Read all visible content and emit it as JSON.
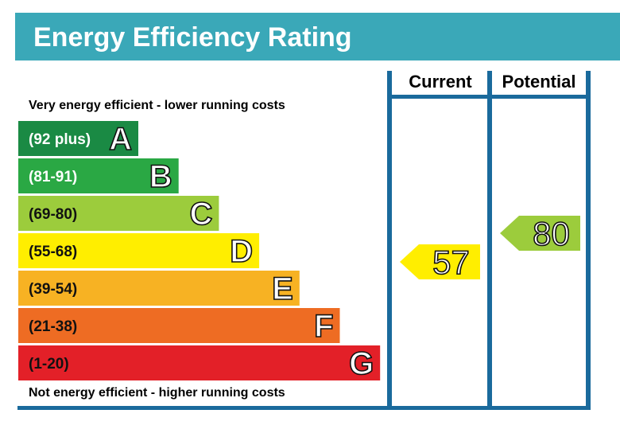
{
  "title": "Energy Efficiency Rating",
  "colors": {
    "header_bg": "#3aa8b8",
    "frame": "#1a6a9c",
    "text": "#111111",
    "label_text": "#ffffff"
  },
  "chart_data": {
    "type": "bar",
    "column_headers": [
      "Current",
      "Potential"
    ],
    "top_note": "Very energy efficient - lower running costs",
    "bottom_note": "Not energy efficient - higher running costs",
    "bands": [
      {
        "letter": "A",
        "range": "(92 plus)",
        "color": "#1a8a44",
        "range_text_color": "#ffffff",
        "min": 92,
        "max": 100
      },
      {
        "letter": "B",
        "range": "(81-91)",
        "color": "#2aa844",
        "range_text_color": "#ffffff",
        "min": 81,
        "max": 91
      },
      {
        "letter": "C",
        "range": "(69-80)",
        "color": "#9ccc3c",
        "range_text_color": "#111111",
        "min": 69,
        "max": 80
      },
      {
        "letter": "D",
        "range": "(55-68)",
        "color": "#ffee00",
        "range_text_color": "#111111",
        "min": 55,
        "max": 68
      },
      {
        "letter": "E",
        "range": "(39-54)",
        "color": "#f7b223",
        "range_text_color": "#111111",
        "min": 39,
        "max": 54
      },
      {
        "letter": "F",
        "range": "(21-38)",
        "color": "#ee6c23",
        "range_text_color": "#111111",
        "min": 21,
        "max": 38
      },
      {
        "letter": "G",
        "range": "(1-20)",
        "color": "#e32028",
        "range_text_color": "#111111",
        "min": 1,
        "max": 20
      }
    ],
    "current": {
      "value": 57,
      "band": "D",
      "color": "#ffee00"
    },
    "potential": {
      "value": 80,
      "band": "C",
      "color": "#9ccc3c"
    }
  }
}
